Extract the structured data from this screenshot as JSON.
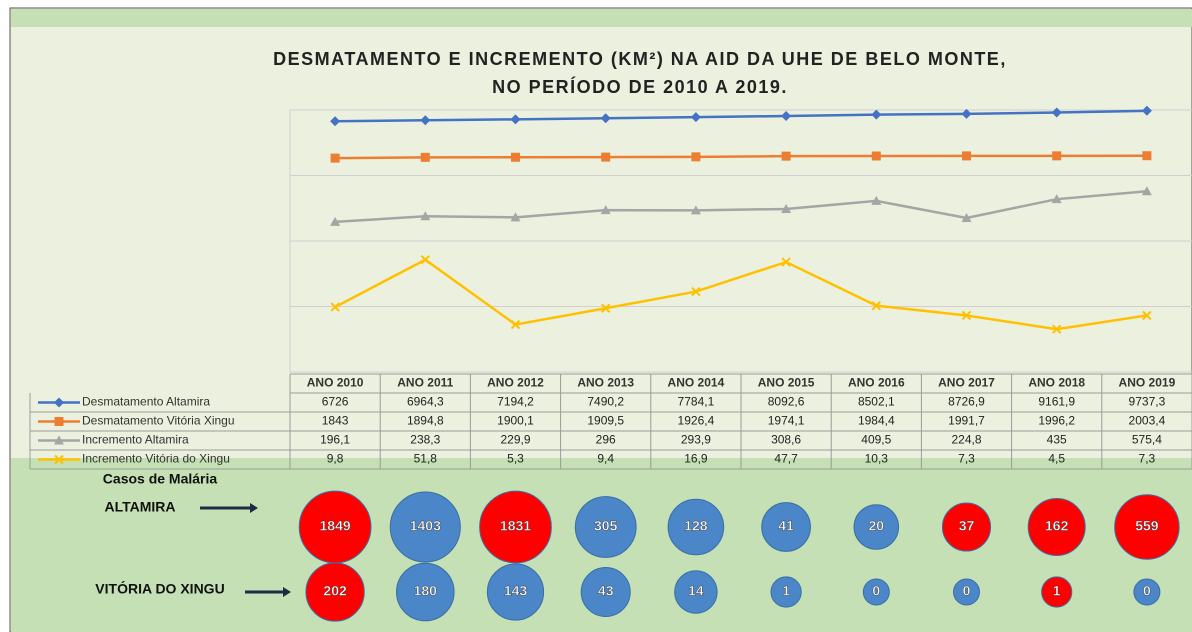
{
  "chart_data": [
    {
      "type": "line",
      "title": [
        "DESMATAMENTO E INCREMENTO (KM²) NA AID DA UHE DE BELO MONTE,",
        "NO PERÍODO DE 2010 A 2019."
      ],
      "categories": [
        "ANO 2010",
        "ANO 2011",
        "ANO 2012",
        "ANO 2013",
        "ANO 2014",
        "ANO 2015",
        "ANO 2016",
        "ANO 2017",
        "ANO 2018",
        "ANO 2019"
      ],
      "log_scale": true,
      "grid": true,
      "ylim": [
        1,
        10000
      ],
      "yticks": [
        1,
        10,
        100,
        1000,
        10000
      ],
      "series": [
        {
          "name": "Desmatamento Altamira",
          "color": "#4472c4",
          "marker": "diamond",
          "values": [
            6726,
            6964.3,
            7194.2,
            7490.2,
            7784.1,
            8092.6,
            8502.1,
            8726.9,
            9161.9,
            9737.3
          ],
          "value_labels": [
            "6726",
            "6964,3",
            "7194,2",
            "7490,2",
            "7784,1",
            "8092,6",
            "8502,1",
            "8726,9",
            "9161,9",
            "9737,3"
          ]
        },
        {
          "name": "Desmatamento Vitória Xingu",
          "color": "#ed7d31",
          "marker": "square",
          "values": [
            1843,
            1894.8,
            1900.1,
            1909.5,
            1926.4,
            1974.1,
            1984.4,
            1991.7,
            1996.2,
            2003.4
          ],
          "value_labels": [
            "1843",
            "1894,8",
            "1900,1",
            "1909,5",
            "1926,4",
            "1974,1",
            "1984,4",
            "1991,7",
            "1996,2",
            "2003,4"
          ]
        },
        {
          "name": "Incremento Altamira",
          "color": "#a5a5a5",
          "marker": "triangle",
          "values": [
            196.1,
            238.3,
            229.9,
            296,
            293.9,
            308.6,
            409.5,
            224.8,
            435,
            575.4
          ],
          "value_labels": [
            "196,1",
            "238,3",
            "229,9",
            "296",
            "293,9",
            "308,6",
            "409,5",
            "224,8",
            "435",
            "575,4"
          ]
        },
        {
          "name": "Incremento Vitória do Xingu",
          "color": "#ffc000",
          "marker": "x",
          "values": [
            9.8,
            51.8,
            5.3,
            9.4,
            16.9,
            47.7,
            10.3,
            7.3,
            4.5,
            7.3
          ],
          "value_labels": [
            "9,8",
            "51,8",
            "5,3",
            "9,4",
            "16,9",
            "47,7",
            "10,3",
            "7,3",
            "4,5",
            "7,3"
          ]
        }
      ]
    },
    {
      "type": "bubble",
      "title": "Casos de Malária",
      "series": [
        {
          "name": "ALTAMIRA",
          "values": [
            1849,
            1403,
            1831,
            305,
            128,
            41,
            20,
            37,
            162,
            559
          ],
          "colors": [
            "#ff0000",
            "#4a86c8",
            "#ff0000",
            "#4a86c8",
            "#4a86c8",
            "#4a86c8",
            "#4a86c8",
            "#ff0000",
            "#ff0000",
            "#ff0000"
          ]
        },
        {
          "name": "VITÓRIA DO XINGU",
          "values": [
            202,
            180,
            143,
            43,
            14,
            1,
            0,
            0,
            1,
            0
          ],
          "colors": [
            "#ff0000",
            "#4a86c8",
            "#4a86c8",
            "#4a86c8",
            "#4a86c8",
            "#4a86c8",
            "#4a86c8",
            "#4a86c8",
            "#ff0000",
            "#4a86c8"
          ]
        }
      ]
    }
  ]
}
